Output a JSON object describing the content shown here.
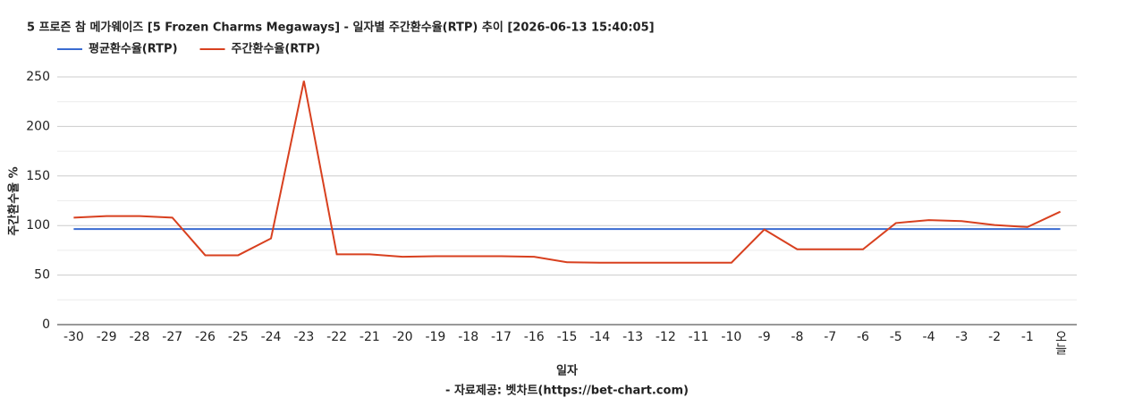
{
  "chart_data": {
    "type": "line",
    "title": "5 프로즌 참 메가웨이즈 [5 Frozen Charms Megaways] - 일자별 주간환수율(RTP) 추이 [2026-06-13 15:40:05]",
    "x_label": "일자",
    "y_label": "주간환수율 %",
    "footnote": "- 자료제공: 벳차트(https://bet-chart.com)",
    "categories": [
      "-30",
      "-29",
      "-28",
      "-27",
      "-26",
      "-25",
      "-24",
      "-23",
      "-22",
      "-21",
      "-20",
      "-19",
      "-18",
      "-17",
      "-16",
      "-15",
      "-14",
      "-13",
      "-12",
      "-11",
      "-10",
      "-9",
      "-8",
      "-7",
      "-6",
      "-5",
      "-4",
      "-3",
      "-2",
      "-1",
      "오늘"
    ],
    "series": [
      {
        "name": "평균환수율(RTP)",
        "color": "#3a6bd1",
        "values": [
          96.5,
          96.5,
          96.5,
          96.5,
          96.5,
          96.5,
          96.5,
          96.5,
          96.5,
          96.5,
          96.5,
          96.5,
          96.5,
          96.5,
          96.5,
          96.5,
          96.5,
          96.5,
          96.5,
          96.5,
          96.5,
          96.5,
          96.5,
          96.5,
          96.5,
          96.5,
          96.5,
          96.5,
          96.5,
          96.5,
          96.5
        ]
      },
      {
        "name": "주간환수율(RTP)",
        "color": "#d8401f",
        "values": [
          108,
          109.5,
          109.5,
          108,
          70,
          70,
          87,
          246,
          71,
          71,
          68.5,
          69,
          69,
          69,
          68.5,
          63,
          62.5,
          62.5,
          62.5,
          62.5,
          62.5,
          96,
          76,
          76,
          76,
          102.5,
          105.5,
          104.5,
          100.5,
          98.5,
          114
        ]
      }
    ],
    "ylim": [
      0,
      250
    ],
    "yticks": [
      0,
      50,
      100,
      150,
      200,
      250
    ],
    "grid": true,
    "legend": "top-left"
  }
}
